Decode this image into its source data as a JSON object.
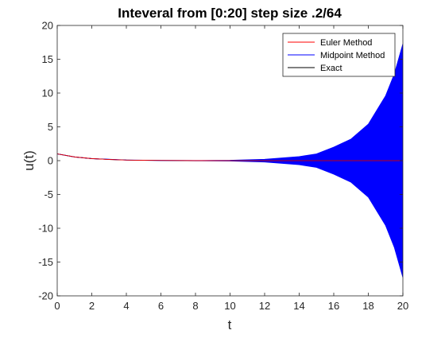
{
  "figure": {
    "background": "#ffffff"
  },
  "chart_data": {
    "type": "line",
    "title": "Inteveral from [0:20] step size .2/64",
    "xlabel": "t",
    "ylabel": "u(t)",
    "xlim": [
      0,
      20
    ],
    "ylim": [
      -20,
      20
    ],
    "xticks": [
      0,
      2,
      4,
      6,
      8,
      10,
      12,
      14,
      16,
      18,
      20
    ],
    "yticks": [
      -20,
      -15,
      -10,
      -5,
      0,
      5,
      10,
      15,
      20
    ],
    "grid": false,
    "legend_position": "top-right",
    "series": [
      {
        "name": "Euler Method",
        "color": "#ff0000",
        "kind": "decaying",
        "x": [
          0,
          1,
          2,
          3,
          4,
          5,
          6,
          8,
          10,
          14,
          20
        ],
        "y": [
          1.0,
          0.55,
          0.3,
          0.17,
          0.09,
          0.05,
          0.03,
          0.01,
          0.0,
          0.0,
          0.0
        ]
      },
      {
        "name": "Midpoint Method",
        "color": "#0000ff",
        "kind": "oscillating-envelope",
        "x": [
          0,
          1,
          2,
          4,
          6,
          8,
          10,
          12,
          14,
          15,
          16,
          17,
          18,
          19,
          19.5,
          20
        ],
        "upper": [
          1.0,
          0.55,
          0.3,
          0.09,
          0.03,
          0.02,
          0.05,
          0.2,
          0.6,
          1.0,
          2.0,
          3.2,
          5.4,
          9.6,
          12.8,
          17.3
        ],
        "lower": [
          1.0,
          0.55,
          0.3,
          0.09,
          0.03,
          -0.02,
          -0.05,
          -0.2,
          -0.6,
          -1.0,
          -2.0,
          -3.2,
          -5.4,
          -9.6,
          -12.8,
          -17.3
        ]
      },
      {
        "name": "Exact",
        "color": "#000000",
        "kind": "decaying",
        "x": [
          0,
          1,
          2,
          3,
          4,
          5,
          6,
          8,
          10,
          14,
          20
        ],
        "y": [
          1.0,
          0.55,
          0.3,
          0.17,
          0.09,
          0.05,
          0.03,
          0.01,
          0.0,
          0.0,
          0.0
        ]
      }
    ]
  }
}
